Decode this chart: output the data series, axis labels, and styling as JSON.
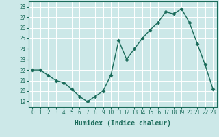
{
  "x": [
    0,
    1,
    2,
    3,
    4,
    5,
    6,
    7,
    8,
    9,
    10,
    11,
    12,
    13,
    14,
    15,
    16,
    17,
    18,
    19,
    20,
    21,
    22,
    23
  ],
  "y": [
    22.0,
    22.0,
    21.5,
    21.0,
    20.8,
    20.2,
    19.5,
    19.0,
    19.5,
    20.0,
    21.5,
    24.8,
    23.0,
    24.0,
    25.0,
    25.8,
    26.5,
    27.5,
    27.3,
    27.8,
    26.5,
    24.5,
    22.5,
    20.2
  ],
  "line_color": "#1a6b5a",
  "marker": "D",
  "marker_size": 2.5,
  "bg_color": "#cce8e8",
  "grid_color": "#ffffff",
  "xlabel": "Humidex (Indice chaleur)",
  "xlim": [
    -0.5,
    23.5
  ],
  "ylim": [
    18.5,
    28.5
  ],
  "yticks": [
    19,
    20,
    21,
    22,
    23,
    24,
    25,
    26,
    27,
    28
  ],
  "xticks": [
    0,
    1,
    2,
    3,
    4,
    5,
    6,
    7,
    8,
    9,
    10,
    11,
    12,
    13,
    14,
    15,
    16,
    17,
    18,
    19,
    20,
    21,
    22,
    23
  ],
  "tick_fontsize": 5.5,
  "label_fontsize": 7.0,
  "line_width": 1.0,
  "spine_color": "#1a6b5a"
}
